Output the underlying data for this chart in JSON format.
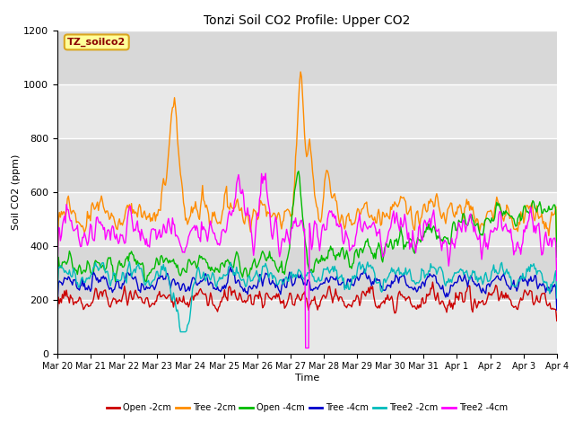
{
  "title": "Tonzi Soil CO2 Profile: Upper CO2",
  "xlabel": "Time",
  "ylabel": "Soil CO2 (ppm)",
  "ylim": [
    0,
    1200
  ],
  "yticks": [
    0,
    200,
    400,
    600,
    800,
    1000,
    1200
  ],
  "annotation_label": "TZ_soilco2",
  "annotation_color": "#8B0000",
  "annotation_bg": "#FFFF99",
  "annotation_border": "#DAA520",
  "series": [
    {
      "label": "Open -2cm",
      "color": "#CC0000"
    },
    {
      "label": "Tree -2cm",
      "color": "#FF8C00"
    },
    {
      "label": "Open -4cm",
      "color": "#00BB00"
    },
    {
      "label": "Tree -4cm",
      "color": "#0000CC"
    },
    {
      "label": "Tree2 -2cm",
      "color": "#00BBBB"
    },
    {
      "label": "Tree2 -4cm",
      "color": "#FF00FF"
    }
  ],
  "n_points": 500,
  "start_day": 0,
  "end_day": 15.0,
  "xtick_days": [
    0,
    1,
    2,
    3,
    4,
    5,
    6,
    7,
    8,
    9,
    10,
    11,
    12,
    13,
    14,
    15
  ],
  "xtick_labels": [
    "Mar 20",
    "Mar 21",
    "Mar 22",
    "Mar 23",
    "Mar 24",
    "Mar 25",
    "Mar 26",
    "Mar 27",
    "Mar 28",
    "Mar 29",
    "Mar 30",
    "Mar 31",
    "Apr 1",
    "Apr 2",
    "Apr 3",
    "Apr 4"
  ]
}
